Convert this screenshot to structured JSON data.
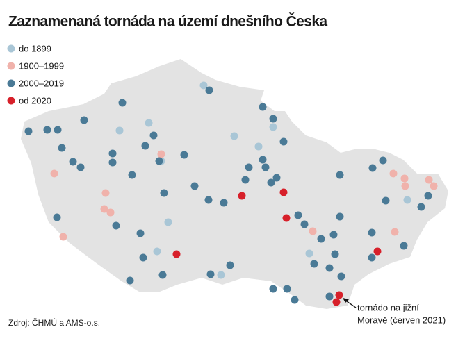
{
  "title": "Zaznamenaná tornáda na území dnešního Česka",
  "legend": [
    {
      "label": "do 1899",
      "color": "#a9c6d6"
    },
    {
      "label": "1900–1999",
      "color": "#f0b2ab"
    },
    {
      "label": "2000–2019",
      "color": "#4a7a96"
    },
    {
      "label": "od 2020",
      "color": "#d7202a"
    }
  ],
  "annotation": [
    "tornádo na jižní",
    "Moravě (červen 2021)"
  ],
  "source": "Zdroj: ČHMÚ a AMS-o.s."
}
